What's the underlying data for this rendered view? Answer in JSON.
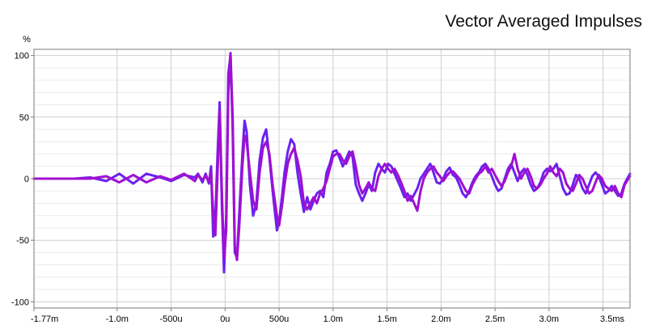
{
  "chart_data": {
    "type": "line",
    "title": "Vector Averaged Impulses",
    "ylabel": "%",
    "xlabel": "",
    "xlim": [
      -0.00177,
      0.00375
    ],
    "ylim": [
      -105,
      105
    ],
    "grid": true,
    "x_ticks": [
      {
        "value": -0.00177,
        "label": "-1.77m"
      },
      {
        "value": -0.001,
        "label": "-1.0m"
      },
      {
        "value": -0.0005,
        "label": "-500u"
      },
      {
        "value": 0,
        "label": "0u"
      },
      {
        "value": 0.0005,
        "label": "500u"
      },
      {
        "value": 0.001,
        "label": "1.0m"
      },
      {
        "value": 0.0015,
        "label": "1.5m"
      },
      {
        "value": 0.002,
        "label": "2.0m"
      },
      {
        "value": 0.0025,
        "label": "2.5m"
      },
      {
        "value": 0.003,
        "label": "3.0m"
      },
      {
        "value": 0.0035,
        "label": "3.5ms"
      }
    ],
    "y_ticks": [
      {
        "value": 100,
        "label": "100"
      },
      {
        "value": 50,
        "label": "50"
      },
      {
        "value": 0,
        "label": "0"
      },
      {
        "value": -50,
        "label": "-50"
      },
      {
        "value": -100,
        "label": "-100"
      }
    ],
    "series": [
      {
        "color": "#6a22f0",
        "points": [
          [
            -0.00177,
            0
          ],
          [
            -0.0014,
            0
          ],
          [
            -0.00125,
            1
          ],
          [
            -0.0011,
            -2
          ],
          [
            -0.00098,
            4
          ],
          [
            -0.00085,
            -4
          ],
          [
            -0.00073,
            4
          ],
          [
            -0.0006,
            1
          ],
          [
            -0.0005,
            -2
          ],
          [
            -0.00038,
            3
          ],
          [
            -0.00028,
            1
          ],
          [
            -0.00025,
            4
          ],
          [
            -0.00021,
            -3
          ],
          [
            -0.00018,
            4
          ],
          [
            -0.00015,
            -4
          ],
          [
            -0.00013,
            10
          ],
          [
            -0.00011,
            -47
          ],
          [
            -9e-05,
            -30
          ],
          [
            -7e-05,
            20
          ],
          [
            -5e-05,
            62
          ],
          [
            -3e-05,
            -20
          ],
          [
            -1e-05,
            -76
          ],
          [
            1e-05,
            -30
          ],
          [
            3e-05,
            85
          ],
          [
            5e-05,
            100
          ],
          [
            7e-05,
            40
          ],
          [
            9e-05,
            -60
          ],
          [
            0.00011,
            -64
          ],
          [
            0.00013,
            -30
          ],
          [
            0.00016,
            20
          ],
          [
            0.00018,
            47
          ],
          [
            0.0002,
            38
          ],
          [
            0.00023,
            -5
          ],
          [
            0.00026,
            -30
          ],
          [
            0.00029,
            -20
          ],
          [
            0.00032,
            15
          ],
          [
            0.00035,
            33
          ],
          [
            0.00038,
            40
          ],
          [
            0.00041,
            17
          ],
          [
            0.00044,
            -10
          ],
          [
            0.00048,
            -42
          ],
          [
            0.0005,
            -35
          ],
          [
            0.00053,
            -12
          ],
          [
            0.00055,
            5
          ],
          [
            0.00058,
            22
          ],
          [
            0.00061,
            32
          ],
          [
            0.00064,
            28
          ],
          [
            0.00067,
            5
          ],
          [
            0.0007,
            -12
          ],
          [
            0.00073,
            -27
          ],
          [
            0.00076,
            -15
          ],
          [
            0.00079,
            -25
          ],
          [
            0.00082,
            -18
          ],
          [
            0.00085,
            -12
          ],
          [
            0.00088,
            -10
          ],
          [
            0.00091,
            -15
          ],
          [
            0.00094,
            5
          ],
          [
            0.00097,
            12
          ],
          [
            0.001,
            22
          ],
          [
            0.00103,
            23
          ],
          [
            0.00106,
            17
          ],
          [
            0.00109,
            10
          ],
          [
            0.00112,
            16
          ],
          [
            0.00115,
            22
          ],
          [
            0.00118,
            18
          ],
          [
            0.00121,
            -5
          ],
          [
            0.00124,
            -12
          ],
          [
            0.00127,
            -18
          ],
          [
            0.0013,
            -12
          ],
          [
            0.00133,
            -5
          ],
          [
            0.00136,
            -10
          ],
          [
            0.00139,
            5
          ],
          [
            0.00142,
            12
          ],
          [
            0.00145,
            8
          ],
          [
            0.00148,
            5
          ],
          [
            0.00151,
            12
          ],
          [
            0.00154,
            10
          ],
          [
            0.00157,
            4
          ],
          [
            0.0016,
            -2
          ],
          [
            0.00163,
            -8
          ],
          [
            0.00166,
            -15
          ],
          [
            0.00169,
            -12
          ],
          [
            0.00172,
            -18
          ],
          [
            0.00175,
            -13
          ],
          [
            0.00178,
            -8
          ],
          [
            0.00181,
            0
          ],
          [
            0.00184,
            4
          ],
          [
            0.00187,
            8
          ],
          [
            0.0019,
            12
          ],
          [
            0.00193,
            5
          ],
          [
            0.00196,
            -3
          ],
          [
            0.00199,
            -4
          ],
          [
            0.00202,
            0
          ],
          [
            0.00205,
            6
          ],
          [
            0.00208,
            9
          ],
          [
            0.00211,
            3
          ],
          [
            0.00214,
            1
          ],
          [
            0.00217,
            -5
          ],
          [
            0.0022,
            -12
          ],
          [
            0.00223,
            -15
          ],
          [
            0.00226,
            -10
          ],
          [
            0.00229,
            -3
          ],
          [
            0.00232,
            2
          ],
          [
            0.00235,
            5
          ],
          [
            0.00238,
            10
          ],
          [
            0.00241,
            12
          ],
          [
            0.00244,
            8
          ],
          [
            0.00247,
            2
          ],
          [
            0.0025,
            -5
          ],
          [
            0.00253,
            -10
          ],
          [
            0.00256,
            -8
          ],
          [
            0.00259,
            0
          ],
          [
            0.00262,
            8
          ],
          [
            0.00265,
            12
          ],
          [
            0.00268,
            5
          ],
          [
            0.00271,
            -2
          ],
          [
            0.00274,
            5
          ],
          [
            0.00277,
            8
          ],
          [
            0.0028,
            3
          ],
          [
            0.00283,
            -5
          ],
          [
            0.00286,
            -10
          ],
          [
            0.00289,
            -8
          ],
          [
            0.00292,
            -3
          ],
          [
            0.00295,
            5
          ],
          [
            0.00298,
            8
          ],
          [
            0.00301,
            6
          ],
          [
            0.00304,
            8
          ],
          [
            0.00307,
            12
          ],
          [
            0.0031,
            2
          ],
          [
            0.00313,
            -8
          ],
          [
            0.00316,
            -13
          ],
          [
            0.00319,
            -12
          ],
          [
            0.00322,
            -5
          ],
          [
            0.00325,
            3
          ],
          [
            0.00328,
            0
          ],
          [
            0.00331,
            -8
          ],
          [
            0.00334,
            -12
          ],
          [
            0.00337,
            -5
          ],
          [
            0.0034,
            2
          ],
          [
            0.00343,
            5
          ],
          [
            0.00346,
            2
          ],
          [
            0.00349,
            -5
          ],
          [
            0.00352,
            -12
          ],
          [
            0.00355,
            -10
          ],
          [
            0.00358,
            -6
          ],
          [
            0.00361,
            -10
          ],
          [
            0.00364,
            -14
          ],
          [
            0.00367,
            -12
          ],
          [
            0.0037,
            -4
          ],
          [
            0.00375,
            4
          ]
        ]
      },
      {
        "color": "#a010d0",
        "points": [
          [
            -0.00177,
            0
          ],
          [
            -0.0014,
            0
          ],
          [
            -0.00125,
            0
          ],
          [
            -0.0011,
            2
          ],
          [
            -0.00098,
            -3
          ],
          [
            -0.00085,
            3
          ],
          [
            -0.00073,
            -3
          ],
          [
            -0.0006,
            2
          ],
          [
            -0.0005,
            -1
          ],
          [
            -0.00038,
            4
          ],
          [
            -0.00028,
            -2
          ],
          [
            -0.00025,
            3
          ],
          [
            -0.00021,
            -1
          ],
          [
            -0.00018,
            2
          ],
          [
            -0.00015,
            -2
          ],
          [
            -0.00013,
            5
          ],
          [
            -0.00011,
            -28
          ],
          [
            -9e-05,
            -46
          ],
          [
            -7e-05,
            5
          ],
          [
            -5e-05,
            55
          ],
          [
            -3e-05,
            -10
          ],
          [
            -1e-05,
            -65
          ],
          [
            1e-05,
            -42
          ],
          [
            3e-05,
            70
          ],
          [
            5e-05,
            102
          ],
          [
            7e-05,
            50
          ],
          [
            9e-05,
            -55
          ],
          [
            0.00011,
            -66
          ],
          [
            0.00013,
            -40
          ],
          [
            0.00016,
            10
          ],
          [
            0.00018,
            35
          ],
          [
            0.0002,
            30
          ],
          [
            0.00023,
            5
          ],
          [
            0.00026,
            -18
          ],
          [
            0.00029,
            -25
          ],
          [
            0.00032,
            5
          ],
          [
            0.00035,
            25
          ],
          [
            0.00038,
            30
          ],
          [
            0.00041,
            20
          ],
          [
            0.00044,
            -5
          ],
          [
            0.00048,
            -30
          ],
          [
            0.0005,
            -38
          ],
          [
            0.00053,
            -20
          ],
          [
            0.00055,
            -5
          ],
          [
            0.00058,
            12
          ],
          [
            0.00061,
            20
          ],
          [
            0.00064,
            25
          ],
          [
            0.00067,
            15
          ],
          [
            0.0007,
            2
          ],
          [
            0.00073,
            -20
          ],
          [
            0.00076,
            -25
          ],
          [
            0.00079,
            -20
          ],
          [
            0.00082,
            -15
          ],
          [
            0.00085,
            -20
          ],
          [
            0.00088,
            -12
          ],
          [
            0.00091,
            -8
          ],
          [
            0.00094,
            -2
          ],
          [
            0.00097,
            8
          ],
          [
            0.001,
            18
          ],
          [
            0.00103,
            20
          ],
          [
            0.00106,
            20
          ],
          [
            0.00109,
            15
          ],
          [
            0.00112,
            12
          ],
          [
            0.00115,
            18
          ],
          [
            0.00118,
            22
          ],
          [
            0.00121,
            10
          ],
          [
            0.00124,
            -5
          ],
          [
            0.00127,
            -12
          ],
          [
            0.0013,
            -8
          ],
          [
            0.00133,
            -3
          ],
          [
            0.00136,
            -8
          ],
          [
            0.00139,
            -10
          ],
          [
            0.00142,
            2
          ],
          [
            0.00145,
            8
          ],
          [
            0.00148,
            12
          ],
          [
            0.00151,
            8
          ],
          [
            0.00154,
            5
          ],
          [
            0.00157,
            8
          ],
          [
            0.0016,
            3
          ],
          [
            0.00163,
            -3
          ],
          [
            0.00166,
            -10
          ],
          [
            0.00169,
            -18
          ],
          [
            0.00172,
            -14
          ],
          [
            0.00175,
            -20
          ],
          [
            0.00178,
            -26
          ],
          [
            0.00181,
            -10
          ],
          [
            0.00184,
            0
          ],
          [
            0.00187,
            5
          ],
          [
            0.0019,
            8
          ],
          [
            0.00193,
            10
          ],
          [
            0.00196,
            5
          ],
          [
            0.00199,
            2
          ],
          [
            0.00202,
            -2
          ],
          [
            0.00205,
            2
          ],
          [
            0.00208,
            5
          ],
          [
            0.00211,
            6
          ],
          [
            0.00214,
            3
          ],
          [
            0.00217,
            0
          ],
          [
            0.0022,
            -5
          ],
          [
            0.00223,
            -10
          ],
          [
            0.00226,
            -12
          ],
          [
            0.00229,
            -5
          ],
          [
            0.00232,
            0
          ],
          [
            0.00235,
            4
          ],
          [
            0.00238,
            6
          ],
          [
            0.00241,
            10
          ],
          [
            0.00244,
            5
          ],
          [
            0.00247,
            8
          ],
          [
            0.0025,
            3
          ],
          [
            0.00253,
            -2
          ],
          [
            0.00256,
            -6
          ],
          [
            0.00259,
            -2
          ],
          [
            0.00262,
            5
          ],
          [
            0.00265,
            10
          ],
          [
            0.00268,
            20
          ],
          [
            0.00271,
            8
          ],
          [
            0.00274,
            0
          ],
          [
            0.00277,
            5
          ],
          [
            0.0028,
            8
          ],
          [
            0.00283,
            2
          ],
          [
            0.00286,
            -6
          ],
          [
            0.00289,
            -8
          ],
          [
            0.00292,
            -5
          ],
          [
            0.00295,
            0
          ],
          [
            0.00298,
            4
          ],
          [
            0.00301,
            10
          ],
          [
            0.00304,
            5
          ],
          [
            0.00307,
            2
          ],
          [
            0.0031,
            8
          ],
          [
            0.00313,
            5
          ],
          [
            0.00316,
            -4
          ],
          [
            0.00319,
            -8
          ],
          [
            0.00322,
            -10
          ],
          [
            0.00325,
            -4
          ],
          [
            0.00328,
            3
          ],
          [
            0.00331,
            0
          ],
          [
            0.00334,
            -6
          ],
          [
            0.00337,
            -12
          ],
          [
            0.0034,
            -10
          ],
          [
            0.00343,
            -3
          ],
          [
            0.00346,
            3
          ],
          [
            0.00349,
            0
          ],
          [
            0.00352,
            -6
          ],
          [
            0.00355,
            -8
          ],
          [
            0.00358,
            -10
          ],
          [
            0.00361,
            -6
          ],
          [
            0.00364,
            -12
          ],
          [
            0.00367,
            -15
          ],
          [
            0.0037,
            -5
          ],
          [
            0.00375,
            2
          ]
        ]
      }
    ]
  }
}
